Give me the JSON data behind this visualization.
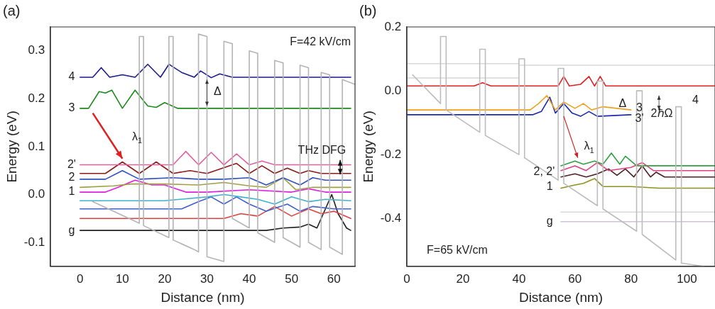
{
  "chart_data": [
    {
      "type": "line",
      "title": "(a)",
      "xlabel": "Distance (nm)",
      "ylabel": "Energy (eV)",
      "xlim": [
        -7,
        65
      ],
      "ylim": [
        -0.15,
        0.35
      ],
      "xticks": [
        0,
        10,
        20,
        30,
        40,
        50,
        60
      ],
      "yticks": [
        -0.1,
        {
          "value": 0,
          "label": "0.0"
        },
        0.1,
        0.2,
        0.3
      ],
      "grid": false,
      "legend": false,
      "marker": "none",
      "line_style": "solid",
      "series": [
        {
          "color": "#b4b4b4",
          "x": [
            3,
            14,
            14,
            15,
            15,
            21,
            21,
            22,
            22,
            27,
            28,
            28,
            30,
            30,
            34,
            34,
            36,
            36,
            40,
            40,
            42,
            42,
            46,
            46,
            48,
            48,
            52,
            52,
            54,
            54,
            57,
            57,
            59,
            59,
            62,
            62,
            65
          ],
          "values": [
            -0.015,
            -0.06,
            0.33,
            0.33,
            -0.065,
            -0.09,
            0.33,
            0.33,
            -0.095,
            -0.115,
            -0.12,
            0.335,
            0.33,
            -0.13,
            -0.14,
            0.32,
            0.315,
            -0.05,
            -0.07,
            0.3,
            0.295,
            -0.08,
            -0.1,
            0.28,
            0.275,
            -0.09,
            -0.11,
            0.27,
            0.265,
            -0.1,
            -0.115,
            0.255,
            0.25,
            -0.11,
            -0.125,
            0.24,
            0.23
          ]
        },
        {
          "color": "#1a1a8c",
          "x": [
            0,
            3,
            5,
            7,
            10,
            13,
            16,
            19,
            21,
            24,
            27,
            28.5,
            31,
            33,
            36,
            64
          ],
          "values": [
            0.245,
            0.245,
            0.265,
            0.245,
            0.25,
            0.245,
            0.272,
            0.245,
            0.272,
            0.255,
            0.245,
            0.258,
            0.244,
            0.252,
            0.245,
            0.245
          ]
        },
        {
          "color": "#1a8a1a",
          "x": [
            0,
            2,
            4.5,
            6,
            7.5,
            10,
            13,
            16,
            18,
            20,
            23,
            64
          ],
          "values": [
            0.18,
            0.18,
            0.215,
            0.212,
            0.218,
            0.18,
            0.218,
            0.185,
            0.182,
            0.192,
            0.18,
            0.18
          ]
        },
        {
          "color": "#e060a0",
          "x": [
            0,
            22,
            25,
            28,
            31,
            34,
            37,
            40,
            43,
            46,
            64
          ],
          "values": [
            0.062,
            0.062,
            0.09,
            0.062,
            0.088,
            0.062,
            0.085,
            0.062,
            0.07,
            0.062,
            0.062
          ]
        },
        {
          "color": "#8b1a1a",
          "x": [
            0,
            6,
            10,
            14,
            18,
            22,
            26,
            30,
            37,
            40,
            43,
            46,
            49,
            52,
            54,
            57,
            64
          ],
          "values": [
            0.044,
            0.044,
            0.068,
            0.044,
            0.068,
            0.044,
            0.05,
            0.044,
            0.065,
            0.044,
            0.06,
            0.044,
            0.055,
            0.044,
            0.05,
            0.044,
            0.044
          ]
        },
        {
          "color": "#3050c0",
          "x": [
            0,
            6,
            10,
            14,
            22,
            28,
            34,
            40,
            44,
            48,
            52,
            55,
            58,
            64
          ],
          "values": [
            0.032,
            0.032,
            0.05,
            0.032,
            0.035,
            0.032,
            0.032,
            0.035,
            0.02,
            0.035,
            0.02,
            0.035,
            0.03,
            0.03
          ]
        },
        {
          "color": "#a0a040",
          "x": [
            0,
            8,
            12,
            20,
            28,
            34,
            40,
            44,
            48,
            51,
            55,
            64
          ],
          "values": [
            0.015,
            0.018,
            0.022,
            0.022,
            0.02,
            0.025,
            0.018,
            0.015,
            0.035,
            0.01,
            0.015,
            0.015
          ]
        },
        {
          "color": "#e020e0",
          "x": [
            0,
            6,
            9,
            13,
            17,
            20,
            25,
            30,
            40,
            50,
            54,
            58,
            64
          ],
          "values": [
            0.005,
            0.005,
            0.015,
            0.03,
            0.02,
            0.02,
            0.005,
            0.005,
            0.01,
            0.005,
            0.012,
            0.005,
            0.005
          ]
        },
        {
          "color": "#40b0d0",
          "x": [
            0,
            20,
            30,
            34,
            38,
            42,
            46,
            50,
            54,
            58,
            64
          ],
          "values": [
            -0.013,
            -0.013,
            -0.005,
            0,
            -0.005,
            -0.01,
            -0.02,
            -0.005,
            -0.015,
            -0.01,
            -0.013
          ]
        },
        {
          "color": "#4060d0",
          "x": [
            0,
            24,
            28,
            31,
            34,
            37,
            40,
            44,
            49,
            52,
            55,
            60,
            64
          ],
          "values": [
            -0.03,
            -0.03,
            -0.015,
            -0.005,
            -0.02,
            -0.005,
            -0.02,
            -0.035,
            -0.02,
            -0.035,
            -0.025,
            -0.03,
            -0.03
          ]
        },
        {
          "color": "#e04040",
          "x": [
            0,
            34,
            38,
            42,
            46,
            50,
            54,
            57,
            60,
            64
          ],
          "values": [
            -0.05,
            -0.05,
            -0.04,
            -0.045,
            -0.025,
            -0.045,
            -0.03,
            -0.04,
            -0.035,
            -0.05
          ]
        },
        {
          "color": "#202020",
          "x": [
            0,
            44,
            48,
            52,
            54,
            56,
            58,
            59.5,
            61,
            63,
            64
          ],
          "values": [
            -0.075,
            -0.075,
            -0.07,
            -0.068,
            -0.062,
            -0.07,
            -0.03,
            0.0,
            -0.04,
            -0.07,
            -0.075
          ]
        }
      ],
      "annotations": [
        "F=42 kV/cm",
        "4",
        "3",
        "2'",
        "2",
        "1",
        "g",
        "Δ",
        "λ$_{1}$",
        {
          "text": "THz DFG",
          "x": 61.5,
          "y": 0.053
        }
      ]
    },
    {
      "type": "line",
      "title": "(b)",
      "xlabel": "Distance (nm)",
      "ylabel": "Energy (eV)",
      "xlim": [
        0,
        110
      ],
      "ylim": [
        -0.55,
        0.2
      ],
      "xticks": [
        0,
        20,
        40,
        60,
        80,
        100
      ],
      "yticks": [
        -0.4,
        -0.2,
        {
          "value": 0,
          "label": "0.0"
        },
        0.2
      ],
      "grid": false,
      "legend": false,
      "marker": "none",
      "line_style": "solid",
      "series": [
        {
          "color": "#bcbcbc",
          "x": [
            2,
            12,
            12,
            14,
            14,
            26,
            26,
            28,
            28,
            40,
            40,
            42,
            42,
            54,
            54,
            56,
            56,
            68,
            68,
            70,
            70,
            82,
            82,
            84,
            84,
            96,
            96,
            98,
            98,
            106
          ],
          "values": [
            0.05,
            -0.04,
            0.17,
            0.17,
            -0.06,
            -0.13,
            0.13,
            0.13,
            -0.14,
            -0.2,
            0.1,
            0.1,
            -0.21,
            -0.28,
            0.07,
            0.07,
            -0.29,
            -0.36,
            0.03,
            0.03,
            -0.37,
            -0.44,
            0.0,
            0.0,
            -0.45,
            -0.53,
            -0.05,
            -0.05,
            -0.54,
            -0.55
          ]
        },
        {
          "color": "#d8d8d8",
          "x": [
            0,
            40
          ],
          "values": [
            0.085,
            0.085
          ]
        },
        {
          "color": "#d8d8d8",
          "x": [
            0,
            40
          ],
          "values": [
            0.04,
            0.04
          ]
        },
        {
          "color": "#d8d8d8",
          "x": [
            40,
            110
          ],
          "values": [
            0.08,
            0.08
          ]
        },
        {
          "color": "#d8d8d8",
          "x": [
            55,
            110
          ],
          "values": [
            -0.38,
            -0.38
          ]
        },
        {
          "color": "#d0c0d8",
          "x": [
            55,
            110
          ],
          "values": [
            -0.41,
            -0.41
          ]
        },
        {
          "color": "#e02020",
          "x": [
            0,
            24,
            27,
            30,
            54,
            56,
            58,
            62,
            65,
            67,
            69,
            71,
            110
          ],
          "values": [
            0.015,
            0.015,
            0.025,
            0.015,
            0.015,
            0.045,
            0.015,
            0.02,
            0.045,
            0.015,
            0.045,
            0.015,
            0.015
          ]
        },
        {
          "color": "#f0a020",
          "x": [
            0,
            44,
            47,
            50,
            53,
            56,
            60,
            63,
            66,
            70,
            80
          ],
          "values": [
            -0.06,
            -0.06,
            -0.04,
            -0.015,
            -0.06,
            -0.035,
            -0.055,
            -0.04,
            -0.06,
            -0.05,
            -0.06
          ]
        },
        {
          "color": "#1a2ab0",
          "x": [
            0,
            45,
            48,
            51,
            53,
            56,
            59,
            62,
            65,
            68,
            80
          ],
          "values": [
            -0.075,
            -0.075,
            -0.065,
            -0.02,
            -0.07,
            -0.04,
            -0.07,
            -0.08,
            -0.065,
            -0.08,
            -0.075
          ]
        },
        {
          "color": "#30a040",
          "x": [
            55,
            60,
            63,
            67,
            70,
            73,
            76,
            78,
            82,
            110
          ],
          "values": [
            -0.235,
            -0.22,
            -0.23,
            -0.22,
            -0.23,
            -0.195,
            -0.23,
            -0.205,
            -0.235,
            -0.235
          ]
        },
        {
          "color": "#e04080",
          "x": [
            55,
            60,
            64,
            68,
            72,
            76,
            80,
            84,
            88,
            110
          ],
          "values": [
            -0.25,
            -0.235,
            -0.25,
            -0.225,
            -0.25,
            -0.245,
            -0.24,
            -0.225,
            -0.25,
            -0.25
          ]
        },
        {
          "color": "#502020",
          "x": [
            55,
            60,
            64,
            68,
            72,
            75,
            78,
            81,
            84,
            87,
            89,
            92,
            110
          ],
          "values": [
            -0.27,
            -0.26,
            -0.27,
            -0.26,
            -0.245,
            -0.265,
            -0.245,
            -0.27,
            -0.235,
            -0.27,
            -0.255,
            -0.27,
            -0.27
          ]
        },
        {
          "color": "#909020",
          "x": [
            55,
            60,
            63,
            67,
            70,
            80,
            90,
            110
          ],
          "values": [
            -0.305,
            -0.295,
            -0.29,
            -0.275,
            -0.3,
            -0.3,
            -0.305,
            -0.305
          ]
        }
      ],
      "annotations": [
        "F=65 kV/cm",
        "4",
        "3",
        "3'",
        "2ℏΩ",
        "Δ",
        "λ$_{1}$",
        "2, 2'",
        "1",
        "g"
      ]
    }
  ]
}
